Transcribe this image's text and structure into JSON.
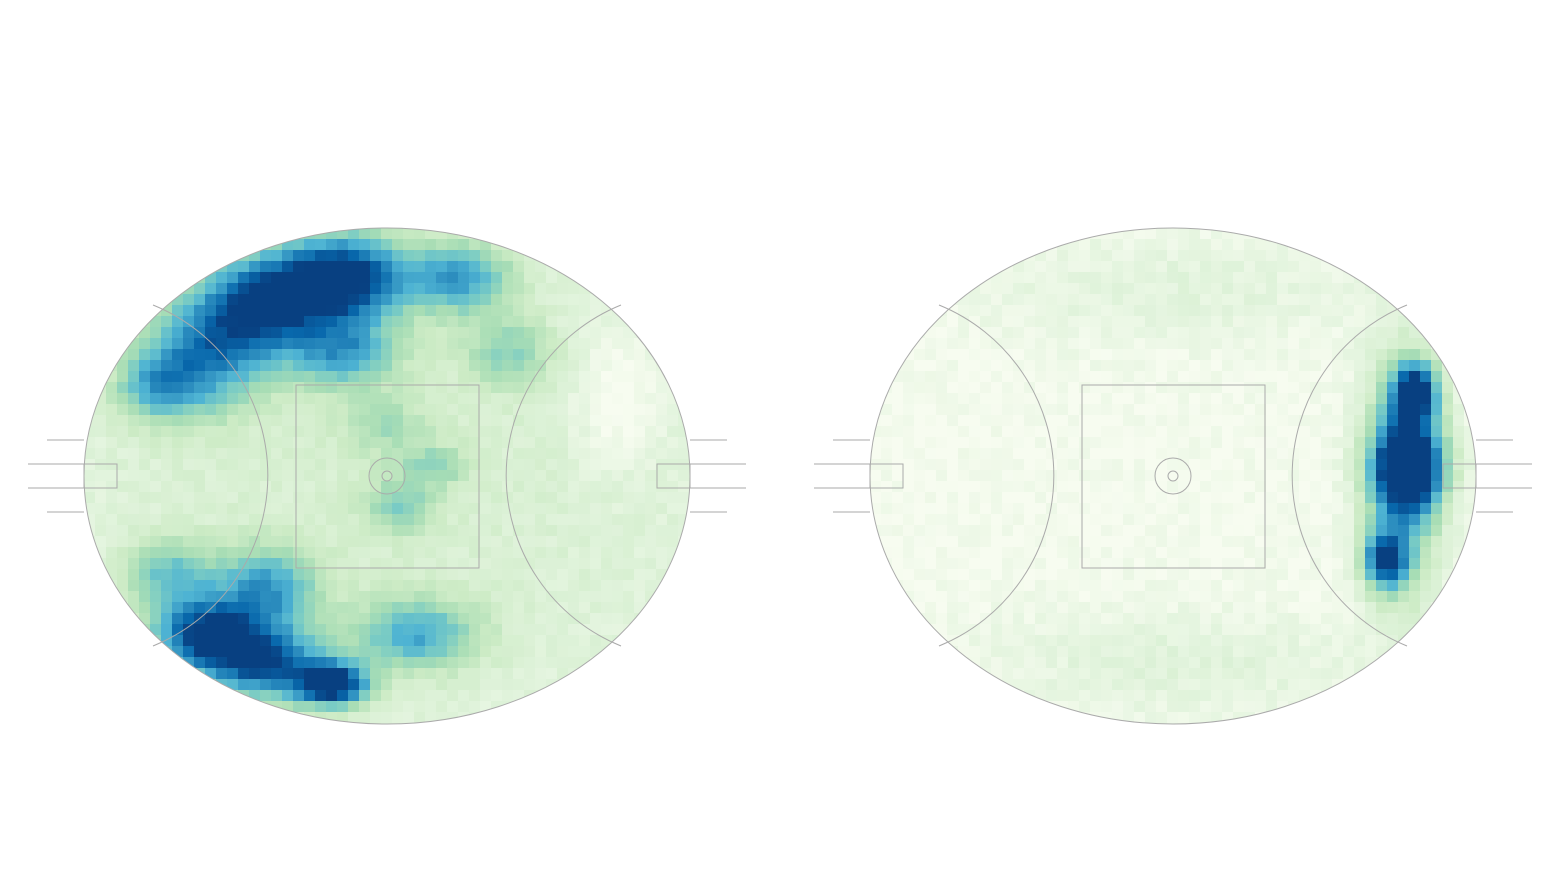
{
  "chart_data": [
    {
      "type": "heatmap",
      "title": "",
      "colormap": [
        "#f7fcf0",
        "#e0f3db",
        "#ccebc5",
        "#a8ddb5",
        "#7bccc4",
        "#4eb3d3",
        "#2b8cbe",
        "#0868ac",
        "#084081"
      ],
      "grid": false,
      "hotspots": [
        {
          "x": 0.43,
          "y": 0.1,
          "sx": 0.07,
          "sy": 0.06,
          "w": 0.95
        },
        {
          "x": 0.3,
          "y": 0.15,
          "sx": 0.07,
          "sy": 0.07,
          "w": 0.8
        },
        {
          "x": 0.2,
          "y": 0.25,
          "sx": 0.07,
          "sy": 0.08,
          "w": 0.6
        },
        {
          "x": 0.62,
          "y": 0.1,
          "sx": 0.06,
          "sy": 0.05,
          "w": 0.55
        },
        {
          "x": 0.43,
          "y": 0.25,
          "sx": 0.06,
          "sy": 0.05,
          "w": 0.5
        },
        {
          "x": 0.2,
          "y": 0.82,
          "sx": 0.06,
          "sy": 0.05,
          "w": 0.85
        },
        {
          "x": 0.3,
          "y": 0.88,
          "sx": 0.07,
          "sy": 0.05,
          "w": 0.75
        },
        {
          "x": 0.41,
          "y": 0.92,
          "sx": 0.04,
          "sy": 0.03,
          "w": 1.0
        },
        {
          "x": 0.3,
          "y": 0.73,
          "sx": 0.06,
          "sy": 0.06,
          "w": 0.55
        },
        {
          "x": 0.55,
          "y": 0.82,
          "sx": 0.07,
          "sy": 0.05,
          "w": 0.5
        },
        {
          "x": 0.14,
          "y": 0.7,
          "sx": 0.05,
          "sy": 0.05,
          "w": 0.4
        },
        {
          "x": 0.12,
          "y": 0.32,
          "sx": 0.05,
          "sy": 0.05,
          "w": 0.4
        },
        {
          "x": 0.52,
          "y": 0.56,
          "sx": 0.04,
          "sy": 0.04,
          "w": 0.3
        },
        {
          "x": 0.58,
          "y": 0.48,
          "sx": 0.04,
          "sy": 0.03,
          "w": 0.25
        },
        {
          "x": 0.7,
          "y": 0.25,
          "sx": 0.05,
          "sy": 0.05,
          "w": 0.3
        },
        {
          "x": 0.5,
          "y": 0.4,
          "sx": 0.05,
          "sy": 0.04,
          "w": 0.22
        }
      ],
      "base": 0.18,
      "dim": [
        {
          "x": 0.88,
          "y": 0.35,
          "sx": 0.05,
          "sy": 0.09,
          "w": 0.17
        }
      ]
    },
    {
      "type": "heatmap",
      "title": "",
      "colormap": [
        "#f7fcf0",
        "#e0f3db",
        "#ccebc5",
        "#a8ddb5",
        "#7bccc4",
        "#4eb3d3",
        "#2b8cbe",
        "#0868ac",
        "#084081"
      ],
      "grid": false,
      "hotspots": [
        {
          "x": 0.9,
          "y": 0.33,
          "sx": 0.025,
          "sy": 0.04,
          "w": 1.0
        },
        {
          "x": 0.89,
          "y": 0.48,
          "sx": 0.04,
          "sy": 0.06,
          "w": 1.0
        },
        {
          "x": 0.85,
          "y": 0.67,
          "sx": 0.025,
          "sy": 0.04,
          "w": 0.82
        },
        {
          "x": 0.88,
          "y": 0.5,
          "sx": 0.045,
          "sy": 0.17,
          "w": 0.6
        },
        {
          "x": 0.5,
          "y": 0.12,
          "sx": 0.25,
          "sy": 0.08,
          "w": 0.1
        },
        {
          "x": 0.5,
          "y": 0.88,
          "sx": 0.25,
          "sy": 0.08,
          "w": 0.11
        }
      ],
      "base": 0.02,
      "dim": []
    }
  ]
}
